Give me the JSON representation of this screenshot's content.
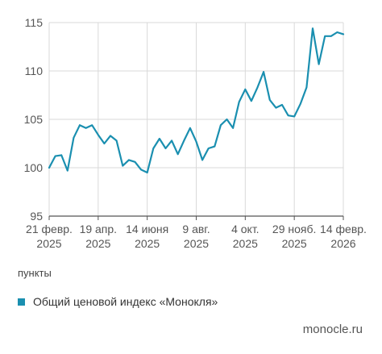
{
  "colors": {
    "series": "#1a8fb0",
    "grid": "#d9d9d9",
    "axis": "#555555"
  },
  "source": "monocle.ru",
  "chart_data": {
    "type": "line",
    "title": "",
    "xlabel": "",
    "ylabel": "пункты",
    "ylim": [
      95,
      115
    ],
    "yticks": [
      95,
      100,
      105,
      110,
      115
    ],
    "grid": true,
    "legend_position": "bottom-left",
    "xticks": [
      {
        "x": 0,
        "line1": "21 февр.",
        "line2": "2025"
      },
      {
        "x": 8,
        "line1": "19 апр.",
        "line2": "2025"
      },
      {
        "x": 16,
        "line1": "14 июня",
        "line2": "2025"
      },
      {
        "x": 24,
        "line1": "9 авг.",
        "line2": "2025"
      },
      {
        "x": 32,
        "line1": "4 окт.",
        "line2": "2025"
      },
      {
        "x": 40,
        "line1": "29 нояб.",
        "line2": "2025"
      },
      {
        "x": 48,
        "line1": "14 февр.",
        "line2": "2026"
      }
    ],
    "series": [
      {
        "name": "Общий ценовой индекс «Монокля»",
        "x": [
          0,
          1,
          2,
          3,
          4,
          5,
          6,
          7,
          8,
          9,
          10,
          11,
          12,
          13,
          14,
          15,
          16,
          17,
          18,
          19,
          20,
          21,
          22,
          23,
          24,
          25,
          26,
          27,
          28,
          29,
          30,
          31,
          32,
          33,
          34,
          35,
          36,
          37,
          38,
          39,
          40,
          41,
          42,
          43,
          44,
          45,
          46,
          47,
          48
        ],
        "values": [
          100.0,
          101.2,
          101.3,
          99.7,
          103.1,
          104.4,
          104.1,
          104.4,
          103.4,
          102.5,
          103.3,
          102.8,
          100.2,
          100.8,
          100.6,
          99.8,
          99.5,
          102.0,
          103.0,
          102.0,
          102.8,
          101.4,
          102.8,
          104.1,
          102.7,
          100.8,
          102.0,
          102.2,
          104.4,
          105.0,
          104.1,
          106.8,
          108.1,
          106.9,
          108.3,
          109.9,
          107.0,
          106.2,
          106.5,
          105.4,
          105.3,
          106.6,
          108.3,
          114.4,
          110.7,
          113.6,
          113.6,
          114.0,
          113.8
        ]
      }
    ]
  }
}
